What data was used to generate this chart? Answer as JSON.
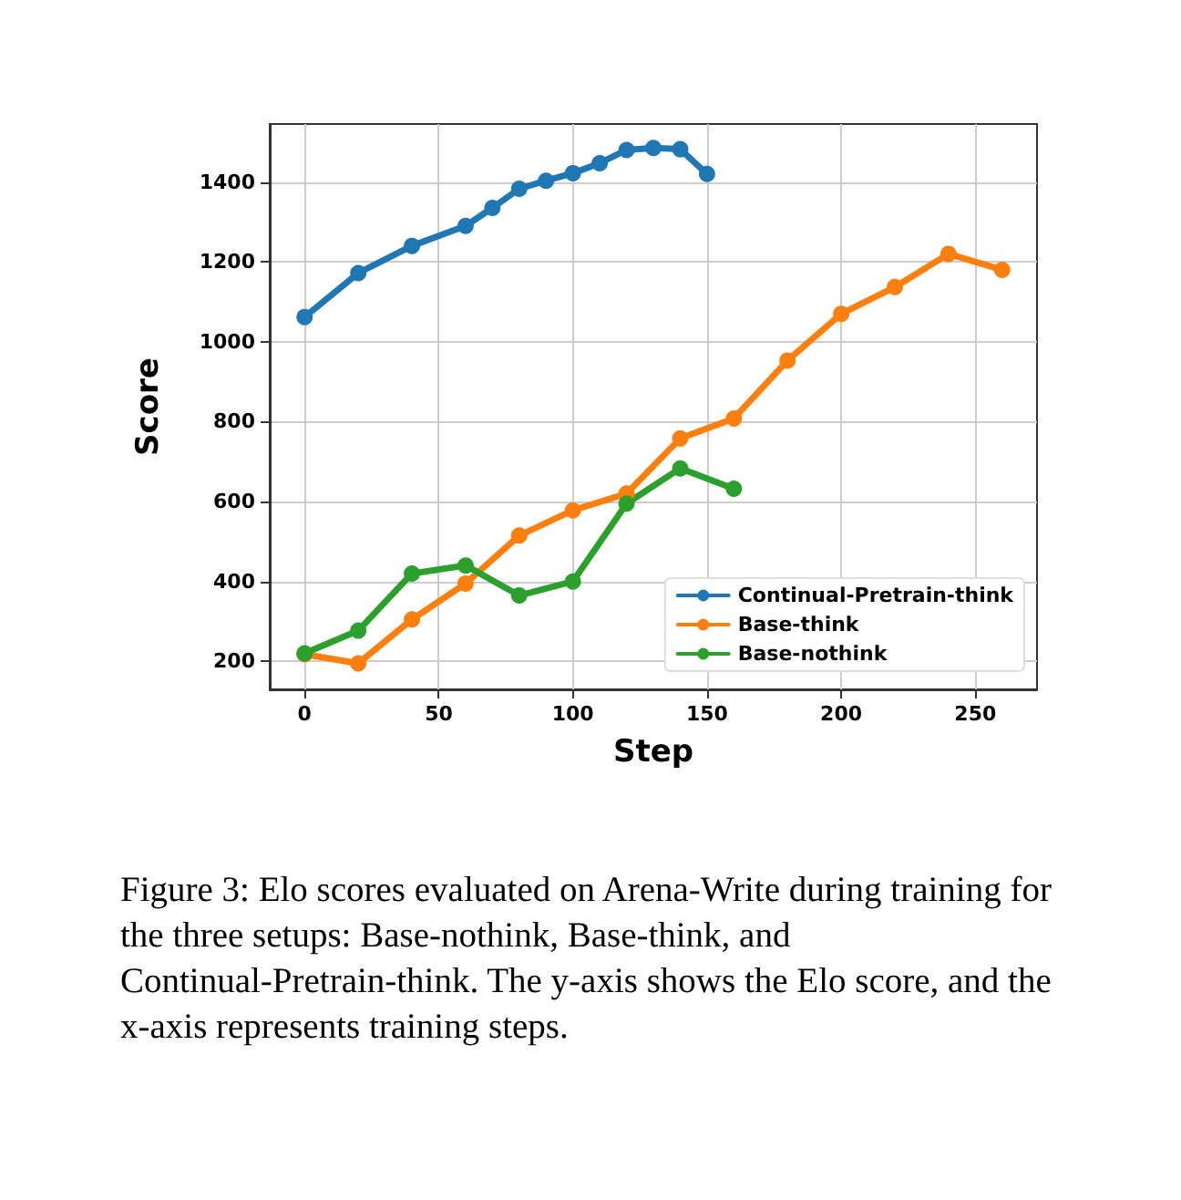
{
  "chart_data": {
    "type": "line",
    "xlabel": "Step",
    "ylabel": "Score",
    "xlim": [
      -13,
      273
    ],
    "ylim": [
      130,
      1545
    ],
    "xticks": [
      0,
      50,
      100,
      150,
      200,
      250
    ],
    "yticks": [
      200,
      400,
      600,
      800,
      1000,
      1200,
      1400
    ],
    "grid": true,
    "legend": "bottom right",
    "marker": "circle",
    "line_style": "solid",
    "series": [
      {
        "name": "Continual-Pretrain-think",
        "color": "#1f77b4",
        "x": [
          0,
          20,
          40,
          60,
          70,
          80,
          90,
          100,
          110,
          120,
          130,
          140,
          150
        ],
        "values": [
          1062,
          1172,
          1240,
          1290,
          1335,
          1383,
          1403,
          1422,
          1447,
          1480,
          1485,
          1482,
          1420
        ]
      },
      {
        "name": "Base-think",
        "color": "#ff7f0e",
        "x": [
          0,
          20,
          40,
          60,
          80,
          100,
          120,
          140,
          160,
          180,
          200,
          220,
          240,
          260
        ],
        "values": [
          218,
          195,
          305,
          395,
          515,
          578,
          620,
          758,
          808,
          953,
          1070,
          1137,
          1220,
          1180
        ]
      },
      {
        "name": "Base-nothink",
        "color": "#2ca02c",
        "x": [
          0,
          20,
          40,
          60,
          80,
          100,
          120,
          140,
          160
        ],
        "values": [
          220,
          277,
          420,
          440,
          365,
          400,
          595,
          683,
          632
        ]
      }
    ],
    "annotations": [
      "Figure 3: Elo scores evaluated on Arena-Write during training for the three setups: Base-nothink, Base-think, and Continual-Pretrain-think. The y-axis shows the Elo score, and the x-axis represents training steps."
    ]
  }
}
